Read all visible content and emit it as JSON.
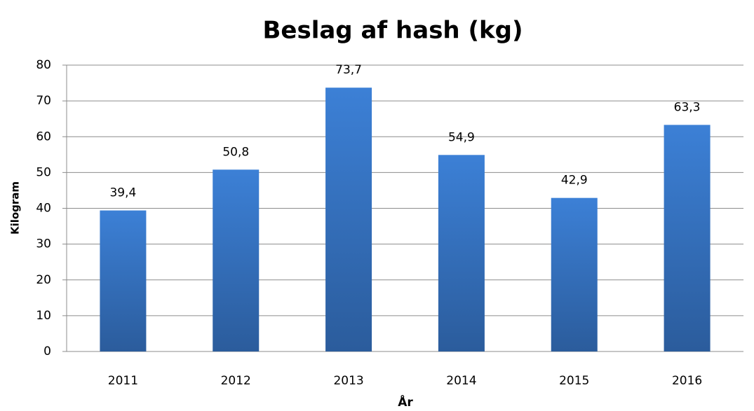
{
  "chart_data": {
    "type": "bar",
    "title": "Beslag af hash (kg)",
    "x_label": "År",
    "y_label": "Kilogram",
    "categories": [
      "2011",
      "2012",
      "2013",
      "2014",
      "2015",
      "2016"
    ],
    "values": [
      39.4,
      50.8,
      73.7,
      54.9,
      42.9,
      63.3
    ],
    "value_labels": [
      "39,4",
      "50,8",
      "73,7",
      "54,9",
      "42,9",
      "63,3"
    ],
    "color": "#3878cc",
    "ylim": [
      0,
      80
    ],
    "yticks": [
      0,
      10,
      20,
      30,
      40,
      50,
      60,
      70,
      80
    ],
    "grid": true
  }
}
